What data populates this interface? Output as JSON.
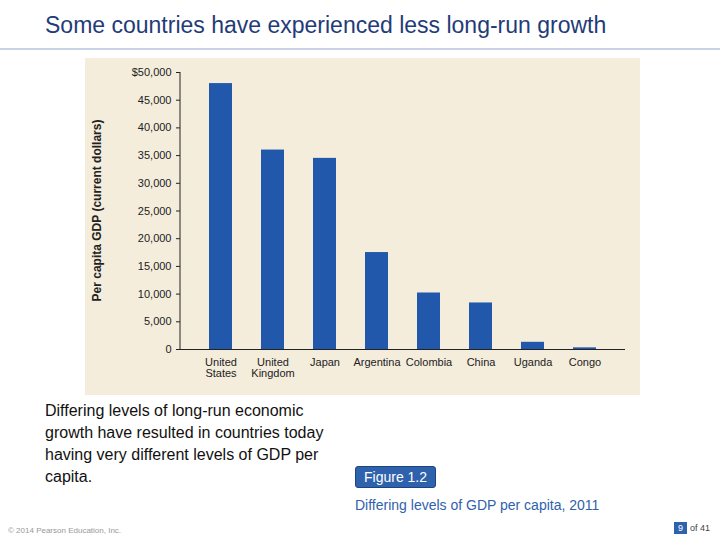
{
  "slide": {
    "title": "Some countries have experienced less long-run growth",
    "text": "Differing levels of long-run economic growth have resulted in countries today having very different levels of GDP per capita.",
    "figure_label": "Figure 1.2",
    "caption": "Differing levels of GDP per capita, 2011",
    "footer": "© 2014 Pearson Education, Inc.",
    "page": "9",
    "page_total": "of 41"
  },
  "chart_data": {
    "type": "bar",
    "y_label": "Per capita GDP (current dollars)",
    "categories": [
      "United States",
      "United Kingdom",
      "Japan",
      "Argentina",
      "Colombia",
      "China",
      "Uganda",
      "Congo"
    ],
    "values": [
      48000,
      36000,
      34500,
      17500,
      10200,
      8400,
      1300,
      300
    ],
    "color": "#2158ac",
    "ylim": [
      0,
      50000
    ],
    "yticks": [
      0,
      {
        "value": 5000,
        "label": "5,000"
      },
      {
        "value": 10000,
        "label": "10,000"
      },
      {
        "value": 15000,
        "label": "15,000"
      },
      {
        "value": 20000,
        "label": "20,000"
      },
      {
        "value": 25000,
        "label": "25,000"
      },
      {
        "value": 30000,
        "label": "30,000"
      },
      {
        "value": 35000,
        "label": "35,000"
      },
      {
        "value": 40000,
        "label": "40,000"
      },
      {
        "value": 45000,
        "label": "45,000"
      },
      {
        "value": 50000,
        "label": "$50,000"
      }
    ],
    "grid": false
  }
}
